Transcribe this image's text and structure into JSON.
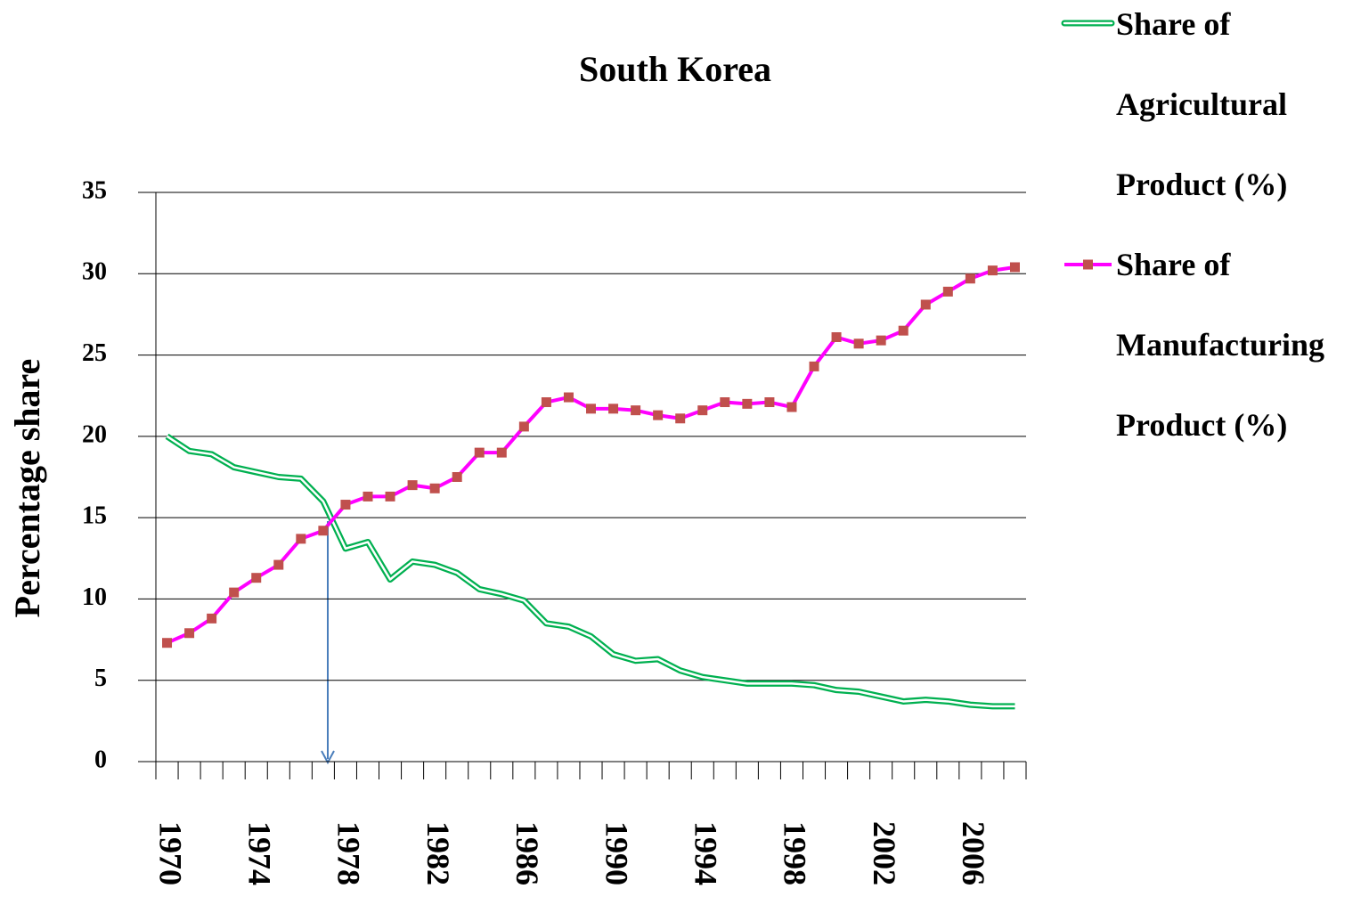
{
  "chart_data": {
    "type": "line",
    "title": "South Korea",
    "y_label": "Percentage share",
    "categories": [
      "1970",
      null,
      null,
      null,
      "1974",
      null,
      null,
      null,
      "1978",
      null,
      null,
      null,
      "1982",
      null,
      null,
      null,
      "1986",
      null,
      null,
      null,
      "1990",
      null,
      null,
      null,
      "1994",
      null,
      null,
      null,
      "1998",
      null,
      null,
      null,
      "2002",
      null,
      null,
      null,
      "2006",
      null,
      null
    ],
    "series": [
      {
        "name": "Share of Agricultural Product (%)",
        "color": "#00b050",
        "style": "double",
        "values": [
          20.0,
          19.1,
          18.9,
          18.1,
          17.8,
          17.5,
          17.4,
          16.0,
          13.1,
          13.5,
          11.2,
          12.3,
          12.1,
          11.6,
          10.6,
          10.3,
          9.9,
          8.5,
          8.3,
          7.7,
          6.6,
          6.2,
          6.3,
          5.6,
          5.2,
          5.0,
          4.8,
          4.8,
          4.8,
          4.7,
          4.4,
          4.3,
          4.0,
          3.7,
          3.8,
          3.7,
          3.5,
          3.4,
          3.4
        ]
      },
      {
        "name": "Share of Manufacturing Product (%)",
        "color": "#ff00ff",
        "marker_color": "#c0504d",
        "values": [
          7.3,
          7.9,
          8.8,
          10.4,
          11.3,
          12.1,
          13.7,
          14.2,
          15.8,
          16.3,
          16.3,
          17.0,
          16.8,
          17.5,
          19.0,
          19.0,
          20.6,
          22.1,
          22.4,
          21.7,
          21.7,
          21.6,
          21.3,
          21.1,
          21.6,
          22.1,
          22.0,
          22.1,
          21.8,
          24.3,
          26.1,
          25.7,
          25.9,
          26.5,
          28.1,
          28.9,
          29.7,
          30.2,
          30.4
        ]
      }
    ],
    "ylim": [
      0,
      35
    ],
    "yticks": [
      0,
      5,
      10,
      15,
      20,
      25,
      30,
      35
    ],
    "grid": true,
    "legend": "top-right"
  }
}
